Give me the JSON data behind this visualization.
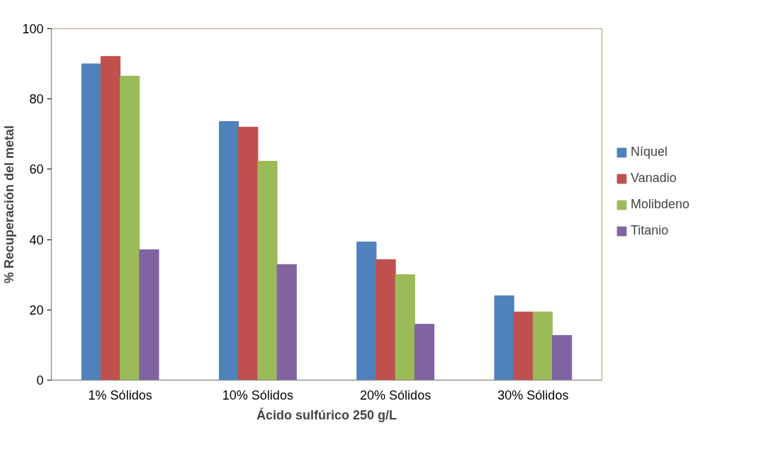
{
  "chart_data": {
    "type": "bar",
    "xlabel": "Ácido sulfúrico 250 g/L",
    "ylabel": "% Recuperación del metal",
    "categories": [
      "1% Sólidos",
      "10% Sólidos",
      "20% Sólidos",
      "30% Sólidos"
    ],
    "series": [
      {
        "name": "Níquel",
        "color": "#4f81bd",
        "values": [
          90.0,
          73.6,
          39.3,
          24.0
        ]
      },
      {
        "name": "Vanadio",
        "color": "#c0504d",
        "values": [
          92.1,
          72.0,
          34.3,
          19.4
        ]
      },
      {
        "name": "Molibdeno",
        "color": "#9bbb59",
        "values": [
          86.5,
          62.3,
          30.0,
          19.4
        ]
      },
      {
        "name": "Titanio",
        "color": "#8064a2",
        "values": [
          37.1,
          32.9,
          15.9,
          12.7
        ]
      }
    ],
    "ylim": [
      0,
      100
    ],
    "yticks": [
      0,
      20,
      40,
      60,
      80,
      100
    ],
    "grid": false,
    "legend": "right"
  }
}
